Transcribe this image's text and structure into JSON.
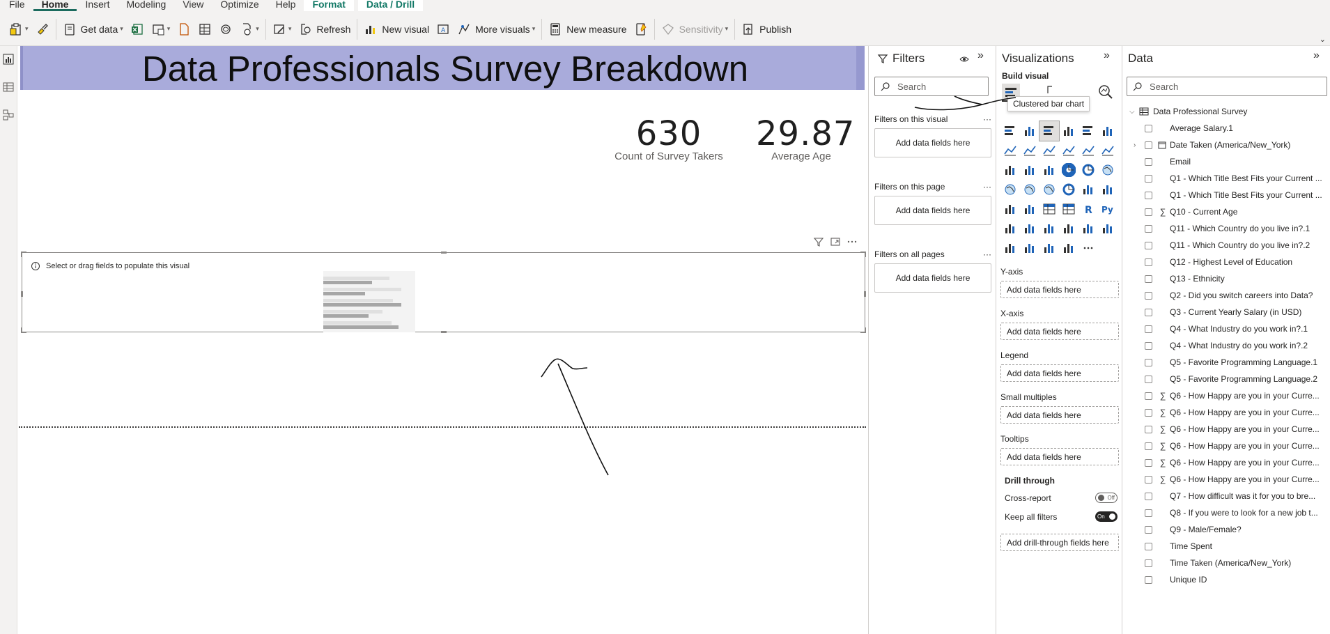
{
  "menu": {
    "tabs": [
      {
        "label": "File",
        "state": "normal"
      },
      {
        "label": "Home",
        "state": "active"
      },
      {
        "label": "Insert",
        "state": "normal"
      },
      {
        "label": "Modeling",
        "state": "normal"
      },
      {
        "label": "View",
        "state": "normal"
      },
      {
        "label": "Optimize",
        "state": "normal"
      },
      {
        "label": "Help",
        "state": "normal"
      },
      {
        "label": "Format",
        "state": "context"
      },
      {
        "label": "Data / Drill",
        "state": "context"
      }
    ]
  },
  "ribbon": {
    "get_data": "Get data",
    "refresh": "Refresh",
    "new_visual": "New visual",
    "more_visuals": "More visuals",
    "new_measure": "New measure",
    "sensitivity": "Sensitivity",
    "publish": "Publish"
  },
  "report": {
    "title": "Data Professionals Survey Breakdown",
    "cards": [
      {
        "value": "630",
        "caption": "Count of Survey Takers"
      },
      {
        "value": "29.87",
        "caption": "Average Age"
      }
    ],
    "empty_visual_hint": "Select or drag fields to populate this visual"
  },
  "filters": {
    "title": "Filters",
    "search_placeholder": "Search",
    "sections": [
      {
        "label": "Filters on this visual",
        "drop": "Add data fields here"
      },
      {
        "label": "Filters on this page",
        "drop": "Add data fields here"
      },
      {
        "label": "Filters on all pages",
        "drop": "Add data fields here"
      }
    ]
  },
  "visualizations": {
    "title": "Visualizations",
    "build_label": "Build visual",
    "tooltip": "Clustered bar chart",
    "wells": [
      {
        "label": "Y-axis",
        "slot": "Add data fields here"
      },
      {
        "label": "X-axis",
        "slot": "Add data fields here"
      },
      {
        "label": "Legend",
        "slot": "Add data fields here"
      },
      {
        "label": "Small multiples",
        "slot": "Add data fields here"
      },
      {
        "label": "Tooltips",
        "slot": "Add data fields here"
      }
    ],
    "drill_through": {
      "label": "Drill through",
      "cross_report": {
        "label": "Cross-report",
        "state": "Off"
      },
      "keep_filters": {
        "label": "Keep all filters",
        "state": "On"
      },
      "add_fields": "Add drill-through fields here"
    }
  },
  "data": {
    "title": "Data",
    "search_placeholder": "Search",
    "table_name": "Data Professional Survey",
    "fields": [
      {
        "name": "Average Salary.1",
        "icon": "none"
      },
      {
        "name": "Date Taken (America/New_York)",
        "icon": "calendar",
        "expandable": true
      },
      {
        "name": "Email",
        "icon": "none"
      },
      {
        "name": "Q1 - Which Title Best Fits your Current ...",
        "icon": "none"
      },
      {
        "name": "Q1 - Which Title Best Fits your Current ...",
        "icon": "none"
      },
      {
        "name": "Q10 - Current Age",
        "icon": "sigma"
      },
      {
        "name": "Q11 - Which Country do you live in?.1",
        "icon": "none"
      },
      {
        "name": "Q11 - Which Country do you live in?.2",
        "icon": "none"
      },
      {
        "name": "Q12 - Highest Level of Education",
        "icon": "none"
      },
      {
        "name": "Q13 - Ethnicity",
        "icon": "none"
      },
      {
        "name": "Q2 - Did you switch careers into Data?",
        "icon": "none"
      },
      {
        "name": "Q3 - Current Yearly Salary (in USD)",
        "icon": "none"
      },
      {
        "name": "Q4 - What Industry do you work in?.1",
        "icon": "none"
      },
      {
        "name": "Q4 - What Industry do you work in?.2",
        "icon": "none"
      },
      {
        "name": "Q5 - Favorite Programming Language.1",
        "icon": "none"
      },
      {
        "name": "Q5 - Favorite Programming Language.2",
        "icon": "none"
      },
      {
        "name": "Q6 - How Happy are you in your Curre...",
        "icon": "sigma"
      },
      {
        "name": "Q6 - How Happy are you in your Curre...",
        "icon": "sigma"
      },
      {
        "name": "Q6 - How Happy are you in your Curre...",
        "icon": "sigma"
      },
      {
        "name": "Q6 - How Happy are you in your Curre...",
        "icon": "sigma"
      },
      {
        "name": "Q6 - How Happy are you in your Curre...",
        "icon": "sigma"
      },
      {
        "name": "Q6 - How Happy are you in your Curre...",
        "icon": "sigma"
      },
      {
        "name": "Q7 - How difficult was it for you to bre...",
        "icon": "none"
      },
      {
        "name": "Q8 - If you were to look for a new job t...",
        "icon": "none"
      },
      {
        "name": "Q9 - Male/Female?",
        "icon": "none"
      },
      {
        "name": "Time Spent",
        "icon": "none"
      },
      {
        "name": "Time Taken (America/New_York)",
        "icon": "none"
      },
      {
        "name": "Unique ID",
        "icon": "none"
      }
    ]
  },
  "colors": {
    "title_band": "#a9abdb",
    "accent_teal": "#117865",
    "viz_blue": "#1f64b8"
  }
}
